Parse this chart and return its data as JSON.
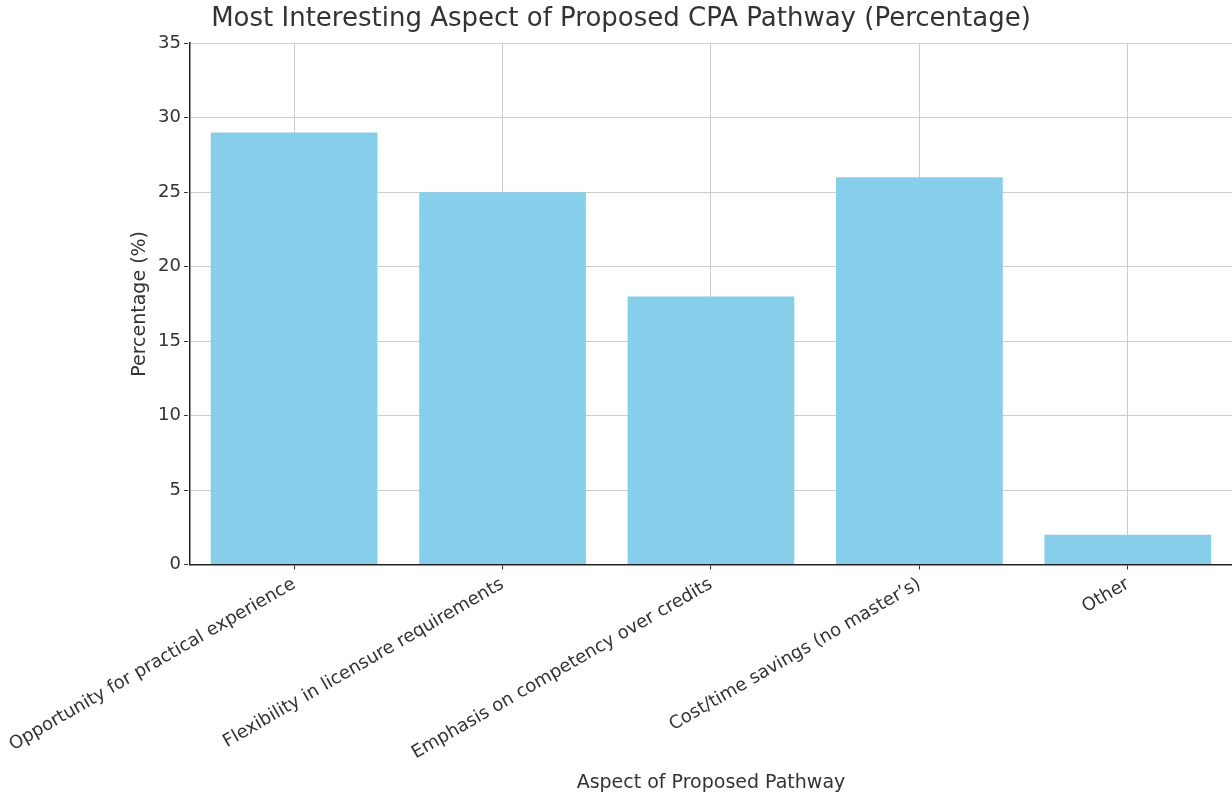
{
  "chart_data": {
    "type": "bar",
    "title": "Most Interesting Aspect of Proposed CPA Pathway (Percentage)",
    "xlabel": "Aspect of Proposed Pathway",
    "ylabel": "Percentage (%)",
    "categories": [
      "Opportunity for practical experience",
      "Flexibility in licensure requirements",
      "Emphasis on competency over credits",
      "Cost/time savings (no master’s)",
      "Other"
    ],
    "values": [
      29,
      25,
      18,
      26,
      2
    ],
    "color": "#87ceeb",
    "ylim": [
      0,
      35
    ],
    "yticks": [
      0,
      5,
      10,
      15,
      20,
      25,
      30,
      35
    ],
    "grid": true,
    "legend": false
  }
}
